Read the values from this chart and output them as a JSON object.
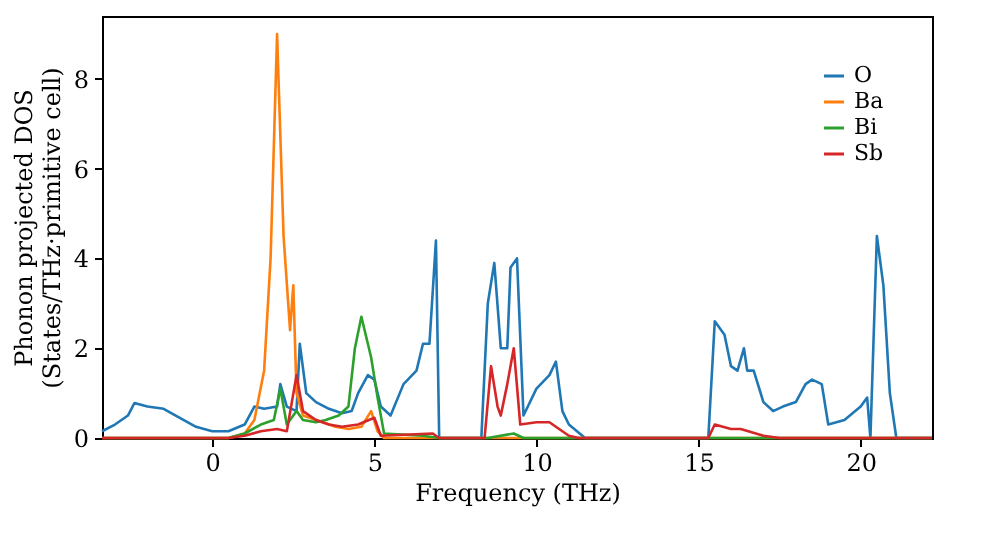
{
  "chart_data": {
    "type": "line",
    "xlabel": "Frequency (THz)",
    "ylabel": "Phonon projected DOS\n(States/THz·primitive cell)",
    "xlim": [
      -3.4,
      22.2
    ],
    "xticks": [
      0,
      5,
      10,
      15,
      20
    ],
    "ylim": [
      0,
      9.4
    ],
    "yticks": [
      0,
      2,
      4,
      6,
      8
    ],
    "grid": false,
    "legend": "top right",
    "line_style": "solid",
    "marker": "none",
    "series": [
      {
        "name": "O",
        "color": "#1f77b4",
        "x": [
          -3.4,
          -3,
          -2.6,
          -2.4,
          -2,
          -1.5,
          -1,
          -0.5,
          0,
          0.5,
          1,
          1.3,
          1.6,
          2,
          2.1,
          2.3,
          2.6,
          2.7,
          2.9,
          3.2,
          3.6,
          4,
          4.3,
          4.5,
          4.8,
          5,
          5.2,
          5.5,
          5.9,
          6.3,
          6.5,
          6.7,
          6.9,
          7,
          8.3,
          8.5,
          8.7,
          8.9,
          9.1,
          9.2,
          9.4,
          9.6,
          10,
          10.4,
          10.6,
          10.8,
          11,
          11.5,
          15.3,
          15.5,
          15.8,
          16,
          16.2,
          16.4,
          16.5,
          16.7,
          17,
          17.3,
          17.6,
          18,
          18.3,
          18.5,
          18.8,
          19,
          19.5,
          20,
          20.2,
          20.3,
          20.5,
          20.7,
          20.9,
          21.1,
          22.2
        ],
        "values": [
          0.15,
          0.3,
          0.5,
          0.78,
          0.7,
          0.65,
          0.45,
          0.25,
          0.15,
          0.15,
          0.3,
          0.7,
          0.65,
          0.7,
          1.2,
          0.7,
          0.6,
          2.1,
          1.0,
          0.8,
          0.65,
          0.55,
          0.6,
          1.0,
          1.4,
          1.3,
          0.7,
          0.5,
          1.2,
          1.5,
          2.1,
          2.1,
          4.4,
          0,
          0,
          3.0,
          3.9,
          2.0,
          2.0,
          3.8,
          4.0,
          0.5,
          1.1,
          1.4,
          1.7,
          0.6,
          0.3,
          0,
          0,
          2.6,
          2.3,
          1.6,
          1.5,
          2.0,
          1.5,
          1.5,
          0.8,
          0.6,
          0.7,
          0.8,
          1.2,
          1.3,
          1.2,
          0.3,
          0.4,
          0.7,
          0.9,
          0,
          4.5,
          3.4,
          1.0,
          0,
          0
        ]
      },
      {
        "name": "Ba",
        "color": "#ff7f0e",
        "x": [
          -3.4,
          0.5,
          1,
          1.3,
          1.6,
          1.8,
          2,
          2.2,
          2.4,
          2.5,
          2.6,
          2.8,
          3.2,
          3.8,
          4.2,
          4.6,
          4.9,
          5.1,
          5.3,
          22.2
        ],
        "values": [
          0,
          0,
          0.1,
          0.4,
          1.5,
          4.0,
          9.0,
          4.5,
          2.4,
          3.4,
          1.0,
          0.5,
          0.4,
          0.25,
          0.2,
          0.25,
          0.6,
          0.15,
          0,
          0
        ]
      },
      {
        "name": "Bi",
        "color": "#2ca02c",
        "x": [
          -3.4,
          0.5,
          1,
          1.5,
          1.9,
          2.1,
          2.3,
          2.6,
          2.8,
          3.2,
          3.5,
          3.9,
          4.2,
          4.4,
          4.6,
          4.9,
          5.1,
          5.3,
          6.5,
          7,
          8.5,
          9.3,
          9.6,
          22.2
        ],
        "values": [
          0,
          0,
          0.1,
          0.3,
          0.4,
          1.1,
          0.3,
          0.6,
          0.4,
          0.35,
          0.4,
          0.5,
          0.7,
          2.0,
          2.7,
          1.8,
          0.9,
          0.1,
          0.05,
          0,
          0,
          0.1,
          0,
          0
        ]
      },
      {
        "name": "Sb",
        "color": "#d62728",
        "x": [
          -3.4,
          0.5,
          1,
          1.5,
          2,
          2.3,
          2.6,
          2.8,
          3.2,
          3.6,
          4,
          4.5,
          5,
          5.2,
          6.8,
          7,
          8.4,
          8.6,
          8.8,
          8.9,
          9.1,
          9.3,
          9.5,
          10,
          10.4,
          11,
          11.3,
          15.3,
          15.5,
          16,
          16.3,
          17,
          17.5,
          22.2
        ],
        "values": [
          0,
          0,
          0.05,
          0.15,
          0.2,
          0.15,
          1.4,
          0.6,
          0.4,
          0.3,
          0.25,
          0.3,
          0.45,
          0.05,
          0.1,
          0,
          0,
          1.6,
          0.7,
          0.5,
          1.2,
          2.0,
          0.3,
          0.35,
          0.35,
          0.05,
          0,
          0,
          0.3,
          0.2,
          0.2,
          0.05,
          0,
          0
        ]
      }
    ]
  }
}
